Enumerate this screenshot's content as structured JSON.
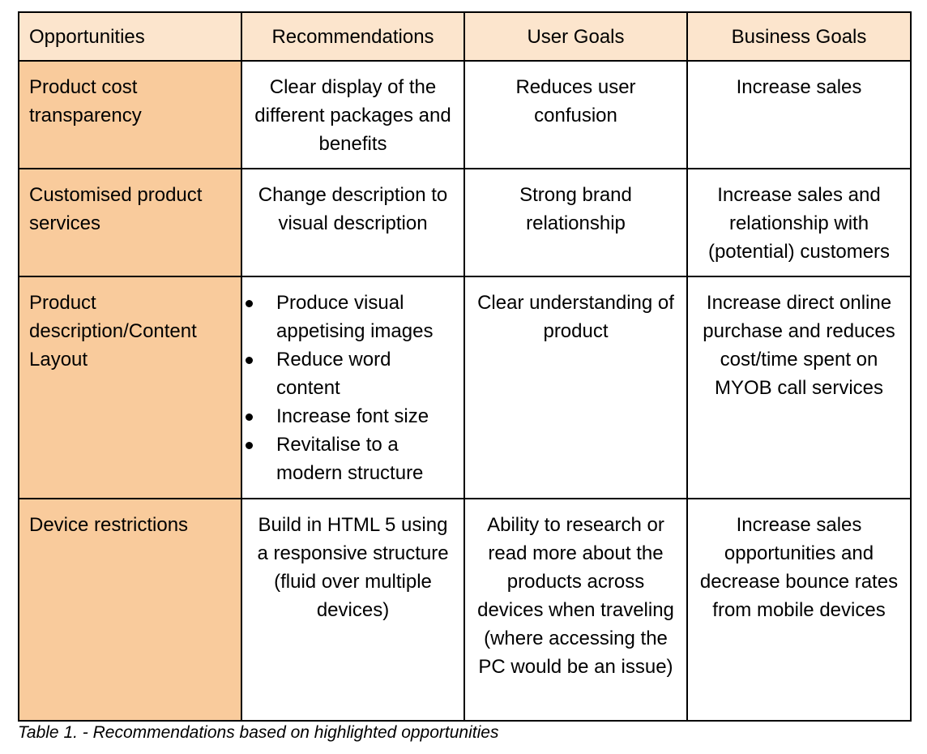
{
  "table": {
    "headers": [
      "Opportunities",
      "Recommendations",
      "User Goals",
      "Business Goals"
    ],
    "rows": [
      {
        "opportunity": "Product cost transparency",
        "recommendation": "Clear display of the different packages and benefits",
        "user_goal": "Reduces user confusion",
        "business_goal": "Increase sales"
      },
      {
        "opportunity": "Customised product services",
        "recommendation": "Change description to visual description",
        "user_goal": "Strong brand relationship",
        "business_goal": "Increase sales and relationship with (potential) customers"
      },
      {
        "opportunity": "Product description/Content Layout",
        "recommendation_items": [
          "Produce visual appetising images",
          "Reduce word content",
          "Increase font size",
          "Revitalise to a modern structure"
        ],
        "user_goal": "Clear understanding of product",
        "business_goal": "Increase direct online purchase and reduces cost/time spent on MYOB call services"
      },
      {
        "opportunity": "Device restrictions",
        "recommendation": "Build in HTML 5 using a responsive structure (fluid over multiple devices)",
        "user_goal": "Ability to research or read more about the products across devices when traveling (where accessing the PC would be an issue)",
        "business_goal": "Increase sales opportunities and decrease bounce rates from mobile devices"
      }
    ]
  },
  "caption": "Table 1. - Recommendations based on highlighted opportunities",
  "colors": {
    "header_bg": "#fce5cd",
    "opportunity_bg": "#f9cb9c",
    "border": "#000000"
  }
}
